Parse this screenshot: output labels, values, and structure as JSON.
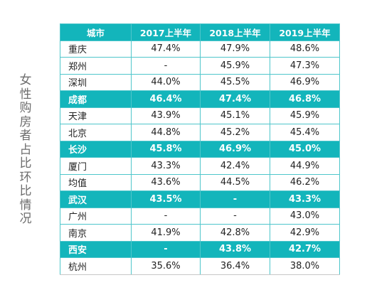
{
  "side_title": [
    "女",
    "性",
    "购",
    "房",
    "者",
    "占",
    "比",
    "环",
    "比",
    "情",
    "况"
  ],
  "table": {
    "headers": [
      "城市",
      "2017上半年",
      "2018上半年",
      "2019上半年"
    ],
    "rows": [
      {
        "city": "重庆",
        "v2017": "47.4%",
        "v2018": "47.9%",
        "v2019": "48.6%",
        "highlight": false
      },
      {
        "city": "郑州",
        "v2017": "-",
        "v2018": "45.9%",
        "v2019": "47.3%",
        "highlight": false
      },
      {
        "city": "深圳",
        "v2017": "44.0%",
        "v2018": "45.5%",
        "v2019": "46.9%",
        "highlight": false
      },
      {
        "city": "成都",
        "v2017": "46.4%",
        "v2018": "47.4%",
        "v2019": "46.8%",
        "highlight": true
      },
      {
        "city": "天津",
        "v2017": "43.9%",
        "v2018": "45.1%",
        "v2019": "45.9%",
        "highlight": false
      },
      {
        "city": "北京",
        "v2017": "44.8%",
        "v2018": "45.2%",
        "v2019": "45.4%",
        "highlight": false
      },
      {
        "city": "长沙",
        "v2017": "45.8%",
        "v2018": "46.9%",
        "v2019": "45.0%",
        "highlight": true
      },
      {
        "city": "厦门",
        "v2017": "43.3%",
        "v2018": "42.4%",
        "v2019": "44.9%",
        "highlight": false
      },
      {
        "city": "均值",
        "v2017": "43.6%",
        "v2018": "44.5%",
        "v2019": "46.2%",
        "highlight": false
      },
      {
        "city": "武汉",
        "v2017": "43.5%",
        "v2018": "-",
        "v2019": "43.3%",
        "highlight": true
      },
      {
        "city": "广州",
        "v2017": "-",
        "v2018": "-",
        "v2019": "43.0%",
        "highlight": false
      },
      {
        "city": "南京",
        "v2017": "41.9%",
        "v2018": "42.8%",
        "v2019": "42.9%",
        "highlight": false
      },
      {
        "city": "西安",
        "v2017": "-",
        "v2018": "43.8%",
        "v2019": "42.7%",
        "highlight": true
      },
      {
        "city": "杭州",
        "v2017": "35.6%",
        "v2018": "36.4%",
        "v2019": "38.0%",
        "highlight": false
      }
    ]
  },
  "colors": {
    "accent": "#13b5bb",
    "border": "#4fc6cb",
    "text": "#222222",
    "side_title": "#6d6d6d"
  }
}
